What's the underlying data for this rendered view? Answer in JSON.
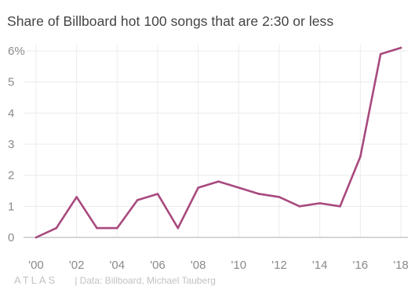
{
  "chart_data": {
    "type": "line",
    "title": "Share of Billboard hot 100 songs that are 2:30 or less",
    "xlabel": "",
    "ylabel": "",
    "x": [
      2000,
      2001,
      2002,
      2003,
      2004,
      2005,
      2006,
      2007,
      2008,
      2009,
      2010,
      2011,
      2012,
      2013,
      2014,
      2015,
      2016,
      2017,
      2018
    ],
    "series": [
      {
        "values": [
          0,
          0.3,
          1.3,
          0.3,
          0.3,
          1.2,
          1.4,
          0.3,
          1.6,
          1.8,
          1.6,
          1.4,
          1.3,
          1.0,
          1.1,
          1.0,
          2.6,
          5.9,
          6.1
        ]
      }
    ],
    "xlim": [
      2000,
      2018
    ],
    "ylim": [
      0,
      6
    ],
    "xticks": [
      2000,
      2002,
      2004,
      2006,
      2008,
      2010,
      2012,
      2014,
      2016,
      2018
    ],
    "xtick_labels": [
      "'00",
      "'02",
      "'04",
      "'06",
      "'08",
      "'10",
      "'12",
      "'14",
      "'16",
      "'18"
    ],
    "yticks": [
      0,
      1,
      2,
      3,
      4,
      5,
      6
    ],
    "ytick_labels": [
      "0",
      "1",
      "2",
      "3",
      "4",
      "5",
      "6%"
    ],
    "grid": true,
    "colors": {
      "line": "#a8497e",
      "grid": "#ececec",
      "zero_line": "#bdbdbd",
      "tick_text": "#8a8a8a"
    }
  },
  "footer": {
    "logo": "ATLAS",
    "source": "| Data: Billboard, Michael Tauberg"
  }
}
